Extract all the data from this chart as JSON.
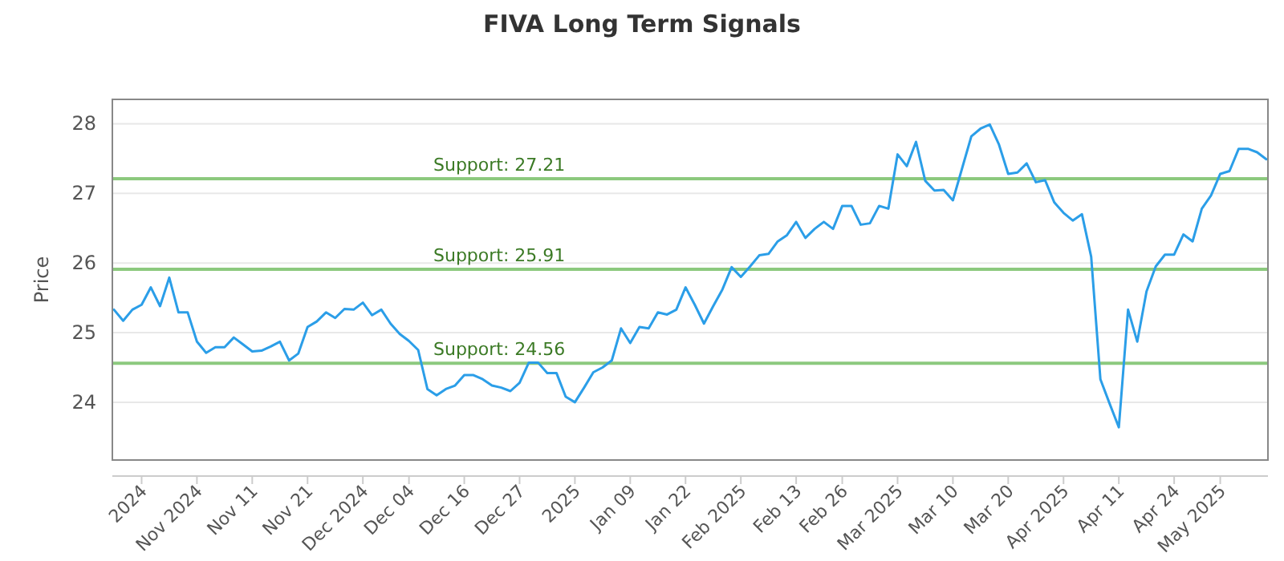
{
  "chart_data": {
    "type": "line",
    "title": "FIVA Long Term Signals",
    "ylabel": "Price",
    "categories": [
      null,
      null,
      null,
      "2024",
      null,
      null,
      null,
      null,
      null,
      "Nov 2024",
      null,
      null,
      null,
      null,
      null,
      "Nov 11",
      null,
      null,
      null,
      null,
      null,
      "Nov 21",
      null,
      null,
      null,
      null,
      null,
      "Dec 2024",
      null,
      null,
      null,
      null,
      "Dec 04",
      null,
      null,
      null,
      null,
      null,
      "Dec 16",
      null,
      null,
      null,
      null,
      null,
      "Dec 27",
      null,
      null,
      null,
      null,
      null,
      "2025",
      null,
      null,
      null,
      null,
      null,
      "Jan 09",
      null,
      null,
      null,
      null,
      null,
      "Jan 22",
      null,
      null,
      null,
      null,
      null,
      "Feb 2025",
      null,
      null,
      null,
      null,
      null,
      "Feb 13",
      null,
      null,
      null,
      null,
      "Feb 26",
      null,
      null,
      null,
      null,
      null,
      "Mar 2025",
      null,
      null,
      null,
      null,
      null,
      "Mar 10",
      null,
      null,
      null,
      null,
      null,
      "Mar 20",
      null,
      null,
      null,
      null,
      null,
      "Apr 2025",
      null,
      null,
      null,
      null,
      null,
      "Apr 11",
      null,
      null,
      null,
      null,
      null,
      "Apr 24",
      null,
      null,
      null,
      null,
      "May 2025",
      null,
      null,
      null,
      null,
      null
    ],
    "series": [
      {
        "color": "#2b9ee8",
        "values": [
          25.33,
          25.17,
          25.33,
          25.4,
          25.65,
          25.38,
          25.79,
          25.29,
          25.29,
          24.87,
          24.71,
          24.79,
          24.79,
          24.93,
          24.83,
          24.73,
          24.74,
          24.8,
          24.87,
          24.6,
          24.7,
          25.08,
          25.16,
          25.29,
          25.21,
          25.34,
          25.33,
          25.43,
          25.25,
          25.33,
          25.13,
          24.98,
          24.88,
          24.75,
          24.19,
          24.1,
          24.19,
          24.24,
          24.39,
          24.39,
          24.33,
          24.24,
          24.21,
          24.16,
          24.28,
          24.57,
          24.57,
          24.42,
          24.42,
          24.08,
          24.0,
          24.21,
          24.43,
          24.5,
          24.6,
          25.06,
          24.85,
          25.08,
          25.06,
          25.29,
          25.26,
          25.33,
          25.65,
          25.4,
          25.13,
          25.38,
          25.62,
          25.94,
          25.8,
          25.95,
          26.11,
          26.13,
          26.31,
          26.4,
          26.59,
          26.36,
          26.49,
          26.59,
          26.49,
          26.82,
          26.82,
          26.55,
          26.57,
          26.82,
          26.78,
          27.56,
          27.39,
          27.74,
          27.18,
          27.04,
          27.05,
          26.9,
          27.36,
          27.82,
          27.93,
          27.99,
          27.7,
          27.28,
          27.3,
          27.43,
          27.16,
          27.19,
          26.87,
          26.72,
          26.61,
          26.7,
          26.09,
          24.33,
          23.98,
          23.64,
          25.33,
          24.87,
          25.59,
          25.95,
          26.12,
          26.12,
          26.41,
          26.31,
          26.78,
          26.97,
          27.28,
          27.32,
          27.64,
          27.64,
          27.59,
          27.49
        ]
      }
    ],
    "ylim": [
      23.17,
      28.35
    ],
    "yticks": [
      24,
      25,
      26,
      27,
      28
    ],
    "grid": "y",
    "marker": "none",
    "line_style": "solid",
    "ref_lines": [
      {
        "axis": "y",
        "value": 27.21,
        "label": "Support: 27.21",
        "color": "#8cc97e"
      },
      {
        "axis": "y",
        "value": 25.91,
        "label": "Support: 25.91",
        "color": "#8cc97e"
      },
      {
        "axis": "y",
        "value": 24.56,
        "label": "Support: 24.56",
        "color": "#8cc97e"
      }
    ]
  }
}
